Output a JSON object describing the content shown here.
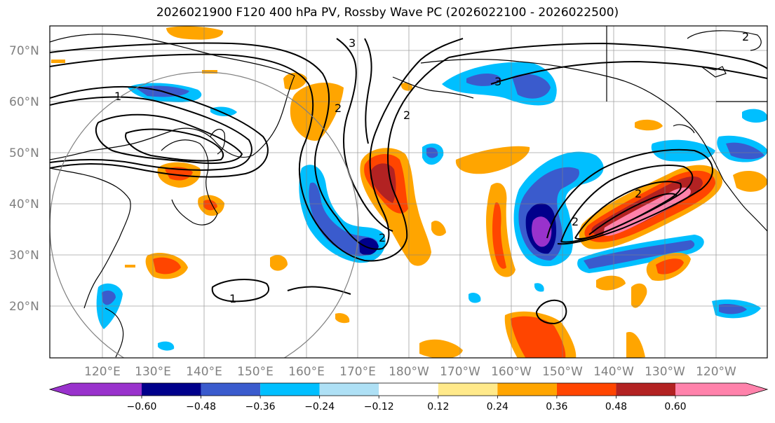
{
  "title": "2026021900 F120 400 hPa PV, Rossby Wave PC (2026022100 - 2026022500)",
  "lat_labels": [
    "70°N",
    "60°N",
    "50°N",
    "40°N",
    "30°N",
    "20°N"
  ],
  "lon_labels": [
    "120°E",
    "130°E",
    "140°E",
    "150°E",
    "160°E",
    "170°E",
    "180°W",
    "170°W",
    "160°W",
    "150°W",
    "140°W",
    "130°W",
    "120°W"
  ],
  "colorbar": {
    "ticks": [
      "−0.60",
      "−0.48",
      "−0.36",
      "−0.24",
      "−0.12",
      "0.12",
      "0.24",
      "0.36",
      "0.48",
      "0.60"
    ],
    "colors": [
      "#9932cc",
      "#00008b",
      "#3a5bcd",
      "#00bfff",
      "#aee0f5",
      "#ffffff",
      "#ffe98a",
      "#ffa500",
      "#ff4500",
      "#b22222",
      "#ff82ab"
    ]
  },
  "contour_labels": [
    "1",
    "2",
    "3"
  ]
}
